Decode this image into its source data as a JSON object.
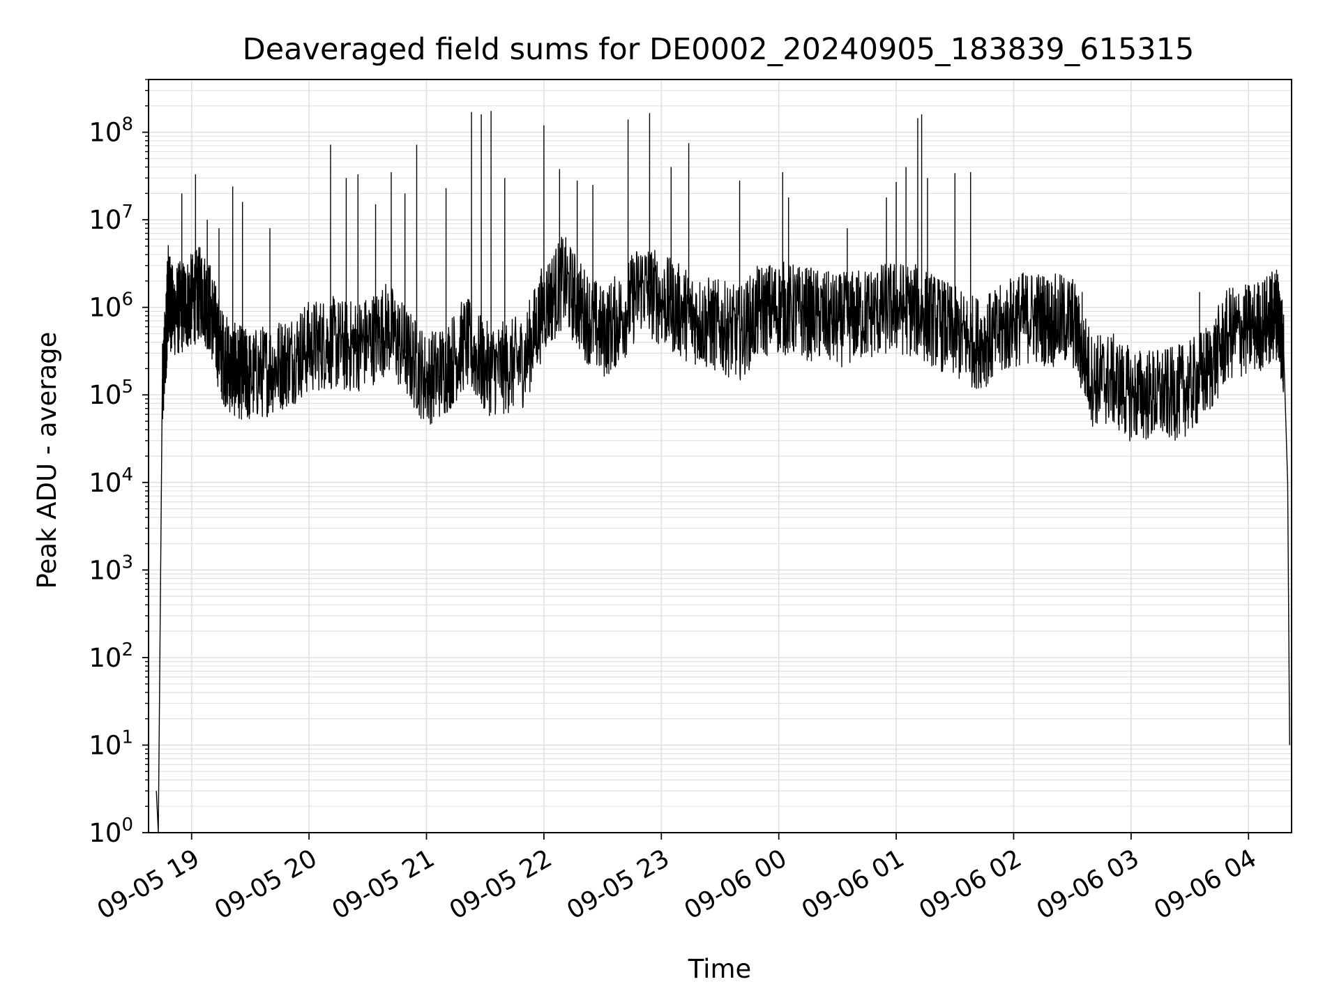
{
  "chart_data": {
    "type": "line",
    "title": "Deaveraged field sums for DE0002_20240905_183839_615315",
    "xlabel": "Time",
    "ylabel": "Peak ADU - average",
    "yscale": "log",
    "grid": true,
    "legend": "none",
    "colors": {
      "line": "#000000",
      "grid": "#e0e0e0",
      "axes": "#000000"
    },
    "x_ticks": [
      "09-05 19",
      "09-05 20",
      "09-05 21",
      "09-05 22",
      "09-05 23",
      "09-06 00",
      "09-06 01",
      "09-06 02",
      "09-06 03",
      "09-06 04"
    ],
    "x_tick_datetimes": [
      "2024-09-05T19:00",
      "2024-09-05T20:00",
      "2024-09-05T21:00",
      "2024-09-05T22:00",
      "2024-09-05T23:00",
      "2024-09-06T00:00",
      "2024-09-06T01:00",
      "2024-09-06T02:00",
      "2024-09-06T03:00",
      "2024-09-06T04:00"
    ],
    "xlim": [
      "2024-09-05T18:38",
      "2024-09-06T04:22"
    ],
    "y_ticks": [
      {
        "base": "10",
        "exp": "0"
      },
      {
        "base": "10",
        "exp": "1"
      },
      {
        "base": "10",
        "exp": "2"
      },
      {
        "base": "10",
        "exp": "3"
      },
      {
        "base": "10",
        "exp": "4"
      },
      {
        "base": "10",
        "exp": "5"
      },
      {
        "base": "10",
        "exp": "6"
      },
      {
        "base": "10",
        "exp": "7"
      },
      {
        "base": "10",
        "exp": "8"
      }
    ],
    "ylim": [
      1,
      400000000
    ],
    "series": [
      {
        "x": [
          "2024-09-05T18:42",
          "2024-09-05T18:43",
          "2024-09-05T18:45",
          "2024-09-05T18:47",
          "2024-09-05T18:48",
          "2024-09-05T18:50",
          "2024-09-05T18:55",
          "2024-09-05T19:00",
          "2024-09-05T19:05",
          "2024-09-05T19:10",
          "2024-09-05T19:15",
          "2024-09-05T19:20",
          "2024-09-05T19:25",
          "2024-09-05T19:30",
          "2024-09-05T19:40",
          "2024-09-05T19:50",
          "2024-09-05T20:00",
          "2024-09-05T20:10",
          "2024-09-05T20:20",
          "2024-09-05T20:30",
          "2024-09-05T20:40",
          "2024-09-05T20:50",
          "2024-09-05T21:00",
          "2024-09-05T21:10",
          "2024-09-05T21:20",
          "2024-09-05T21:30",
          "2024-09-05T21:40",
          "2024-09-05T21:50",
          "2024-09-05T22:00",
          "2024-09-05T22:10",
          "2024-09-05T22:20",
          "2024-09-05T22:30",
          "2024-09-05T22:40",
          "2024-09-05T22:50",
          "2024-09-05T23:00",
          "2024-09-05T23:10",
          "2024-09-05T23:20",
          "2024-09-05T23:30",
          "2024-09-05T23:40",
          "2024-09-05T23:50",
          "2024-09-06T00:00",
          "2024-09-06T00:10",
          "2024-09-06T00:20",
          "2024-09-06T00:30",
          "2024-09-06T00:40",
          "2024-09-06T00:50",
          "2024-09-06T01:00",
          "2024-09-06T01:10",
          "2024-09-06T01:20",
          "2024-09-06T01:30",
          "2024-09-06T01:40",
          "2024-09-06T01:50",
          "2024-09-06T02:00",
          "2024-09-06T02:10",
          "2024-09-06T02:20",
          "2024-09-06T02:30",
          "2024-09-06T02:40",
          "2024-09-06T02:50",
          "2024-09-06T03:00",
          "2024-09-06T03:10",
          "2024-09-06T03:20",
          "2024-09-06T03:30",
          "2024-09-06T03:40",
          "2024-09-06T03:50",
          "2024-09-06T04:00",
          "2024-09-06T04:10",
          "2024-09-06T04:15",
          "2024-09-06T04:18",
          "2024-09-06T04:20",
          "2024-09-06T04:21"
        ],
        "y": [
          3,
          1,
          100000,
          500000,
          1500000,
          900000,
          1000000,
          1200000,
          1500000,
          900000,
          300000,
          200000,
          180000,
          160000,
          200000,
          250000,
          350000,
          400000,
          350000,
          400000,
          600000,
          300000,
          150000,
          200000,
          400000,
          200000,
          200000,
          250000,
          1000000,
          2000000,
          900000,
          500000,
          800000,
          1800000,
          1200000,
          900000,
          700000,
          600000,
          500000,
          900000,
          1000000,
          900000,
          800000,
          700000,
          800000,
          900000,
          1000000,
          900000,
          700000,
          500000,
          400000,
          450000,
          700000,
          800000,
          700000,
          700000,
          150000,
          150000,
          100000,
          100000,
          100000,
          120000,
          200000,
          500000,
          550000,
          700000,
          900000,
          300000,
          10000,
          10
        ]
      }
    ],
    "spikes": [
      {
        "x": "2024-09-05T18:55",
        "y": 20000000
      },
      {
        "x": "2024-09-05T19:02",
        "y": 33000000
      },
      {
        "x": "2024-09-05T19:08",
        "y": 10000000
      },
      {
        "x": "2024-09-05T19:14",
        "y": 8000000
      },
      {
        "x": "2024-09-05T19:21",
        "y": 24000000
      },
      {
        "x": "2024-09-05T19:26",
        "y": 16000000
      },
      {
        "x": "2024-09-05T19:40",
        "y": 8000000
      },
      {
        "x": "2024-09-05T20:11",
        "y": 72000000
      },
      {
        "x": "2024-09-05T20:19",
        "y": 30000000
      },
      {
        "x": "2024-09-05T20:25",
        "y": 33000000
      },
      {
        "x": "2024-09-05T20:34",
        "y": 15000000
      },
      {
        "x": "2024-09-05T20:42",
        "y": 35000000
      },
      {
        "x": "2024-09-05T20:49",
        "y": 20000000
      },
      {
        "x": "2024-09-05T20:55",
        "y": 72000000
      },
      {
        "x": "2024-09-05T21:10",
        "y": 23000000
      },
      {
        "x": "2024-09-05T21:23",
        "y": 170000000
      },
      {
        "x": "2024-09-05T21:28",
        "y": 160000000
      },
      {
        "x": "2024-09-05T21:33",
        "y": 175000000
      },
      {
        "x": "2024-09-05T21:40",
        "y": 30000000
      },
      {
        "x": "2024-09-05T22:00",
        "y": 120000000
      },
      {
        "x": "2024-09-05T22:08",
        "y": 38000000
      },
      {
        "x": "2024-09-05T22:17",
        "y": 28000000
      },
      {
        "x": "2024-09-05T22:25",
        "y": 25000000
      },
      {
        "x": "2024-09-05T22:43",
        "y": 140000000
      },
      {
        "x": "2024-09-05T22:54",
        "y": 165000000
      },
      {
        "x": "2024-09-05T23:05",
        "y": 40000000
      },
      {
        "x": "2024-09-05T23:14",
        "y": 75000000
      },
      {
        "x": "2024-09-05T23:40",
        "y": 28000000
      },
      {
        "x": "2024-09-06T00:02",
        "y": 35000000
      },
      {
        "x": "2024-09-06T00:05",
        "y": 18000000
      },
      {
        "x": "2024-09-06T00:35",
        "y": 8000000
      },
      {
        "x": "2024-09-06T00:55",
        "y": 18000000
      },
      {
        "x": "2024-09-06T01:00",
        "y": 27000000
      },
      {
        "x": "2024-09-06T01:05",
        "y": 40000000
      },
      {
        "x": "2024-09-06T01:11",
        "y": 145000000
      },
      {
        "x": "2024-09-06T01:13",
        "y": 160000000
      },
      {
        "x": "2024-09-06T01:16",
        "y": 30000000
      },
      {
        "x": "2024-09-06T01:30",
        "y": 34000000
      },
      {
        "x": "2024-09-06T01:38",
        "y": 35000000
      },
      {
        "x": "2024-09-06T02:00",
        "y": 2000000
      },
      {
        "x": "2024-09-06T02:35",
        "y": 1500000
      },
      {
        "x": "2024-09-06T03:35",
        "y": 1500000
      }
    ]
  }
}
